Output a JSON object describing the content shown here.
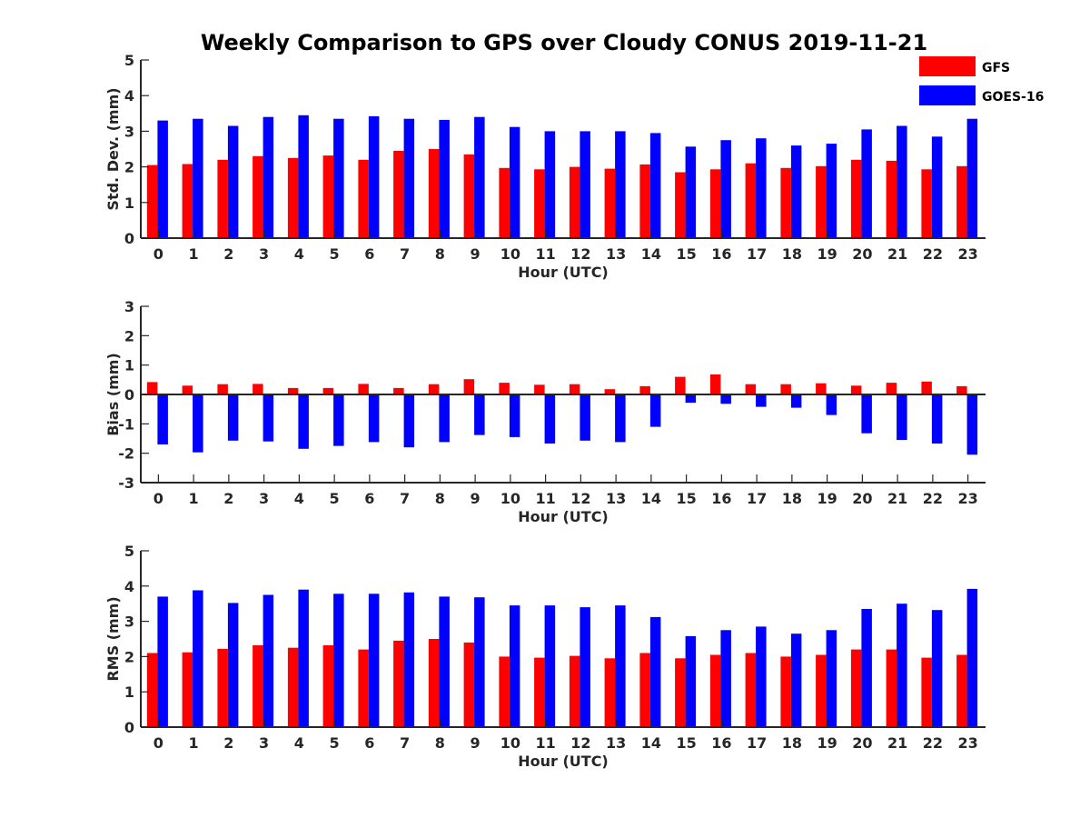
{
  "figure_title": "Weekly Comparison to GPS over Cloudy CONUS 2019-11-21",
  "colors": {
    "GFS": "#ff0000",
    "GOES-16": "#0000ff",
    "axis": "#262626"
  },
  "legend": {
    "placement": "top-right",
    "entries": [
      "GFS",
      "GOES-16"
    ]
  },
  "chart_data": [
    {
      "type": "bar",
      "title": "",
      "xlabel": "Hour (UTC)",
      "ylabel": "Std. Dev. (mm)",
      "ylim": [
        0,
        5
      ],
      "yticks": [
        0,
        1,
        2,
        3,
        4,
        5
      ],
      "categories": [
        "0",
        "1",
        "2",
        "3",
        "4",
        "5",
        "6",
        "7",
        "8",
        "9",
        "10",
        "11",
        "12",
        "13",
        "14",
        "15",
        "16",
        "17",
        "18",
        "19",
        "20",
        "21",
        "22",
        "23"
      ],
      "series": [
        {
          "name": "GFS",
          "values": [
            2.05,
            2.08,
            2.2,
            2.3,
            2.25,
            2.32,
            2.2,
            2.45,
            2.5,
            2.35,
            1.97,
            1.93,
            2.0,
            1.95,
            2.07,
            1.85,
            1.93,
            2.1,
            1.97,
            2.02,
            2.2,
            2.17,
            1.93,
            2.02
          ]
        },
        {
          "name": "GOES-16",
          "values": [
            3.3,
            3.35,
            3.15,
            3.4,
            3.45,
            3.35,
            3.42,
            3.35,
            3.32,
            3.4,
            3.12,
            3.0,
            3.0,
            3.0,
            2.95,
            2.57,
            2.75,
            2.8,
            2.6,
            2.65,
            3.05,
            3.15,
            2.85,
            3.35
          ]
        }
      ]
    },
    {
      "type": "bar",
      "title": "",
      "xlabel": "Hour (UTC)",
      "ylabel": "Bias (mm)",
      "ylim": [
        -3,
        3
      ],
      "yticks": [
        -3,
        -2,
        -1,
        0,
        1,
        2,
        3
      ],
      "categories": [
        "0",
        "1",
        "2",
        "3",
        "4",
        "5",
        "6",
        "7",
        "8",
        "9",
        "10",
        "11",
        "12",
        "13",
        "14",
        "15",
        "16",
        "17",
        "18",
        "19",
        "20",
        "21",
        "22",
        "23"
      ],
      "series": [
        {
          "name": "GFS",
          "values": [
            0.42,
            0.3,
            0.35,
            0.36,
            0.22,
            0.22,
            0.36,
            0.22,
            0.35,
            0.52,
            0.4,
            0.33,
            0.35,
            0.18,
            0.28,
            0.6,
            0.68,
            0.35,
            0.35,
            0.38,
            0.3,
            0.4,
            0.44,
            0.28
          ]
        },
        {
          "name": "GOES-16",
          "values": [
            -1.7,
            -1.97,
            -1.57,
            -1.6,
            -1.85,
            -1.75,
            -1.62,
            -1.8,
            -1.62,
            -1.38,
            -1.45,
            -1.67,
            -1.57,
            -1.62,
            -1.1,
            -0.28,
            -0.32,
            -0.42,
            -0.45,
            -0.7,
            -1.32,
            -1.55,
            -1.67,
            -2.05
          ]
        }
      ]
    },
    {
      "type": "bar",
      "title": "",
      "xlabel": "Hour (UTC)",
      "ylabel": "RMS (mm)",
      "ylim": [
        0,
        5
      ],
      "yticks": [
        0,
        1,
        2,
        3,
        4,
        5
      ],
      "categories": [
        "0",
        "1",
        "2",
        "3",
        "4",
        "5",
        "6",
        "7",
        "8",
        "9",
        "10",
        "11",
        "12",
        "13",
        "14",
        "15",
        "16",
        "17",
        "18",
        "19",
        "20",
        "21",
        "22",
        "23"
      ],
      "series": [
        {
          "name": "GFS",
          "values": [
            2.1,
            2.12,
            2.22,
            2.32,
            2.25,
            2.32,
            2.2,
            2.45,
            2.5,
            2.4,
            2.0,
            1.97,
            2.02,
            1.95,
            2.1,
            1.95,
            2.05,
            2.1,
            2.0,
            2.05,
            2.2,
            2.2,
            1.97,
            2.05
          ]
        },
        {
          "name": "GOES-16",
          "values": [
            3.7,
            3.88,
            3.52,
            3.75,
            3.9,
            3.78,
            3.78,
            3.82,
            3.7,
            3.68,
            3.45,
            3.45,
            3.4,
            3.45,
            3.12,
            2.58,
            2.75,
            2.85,
            2.65,
            2.75,
            3.35,
            3.5,
            3.32,
            3.92
          ]
        }
      ]
    }
  ]
}
